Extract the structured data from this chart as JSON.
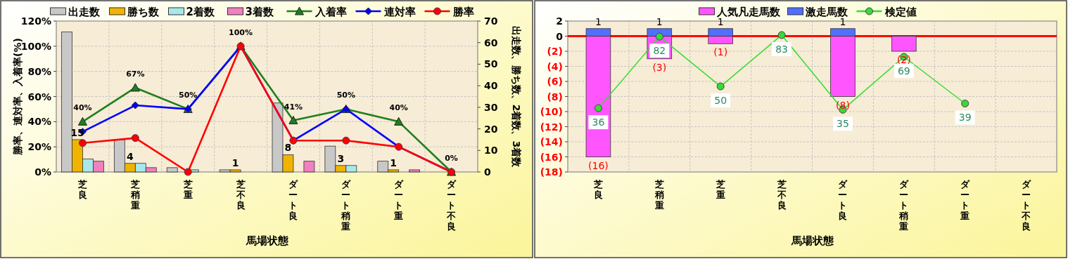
{
  "chart_data": [
    {
      "type": "bar",
      "legend": "top",
      "grid": true,
      "xlabel": "馬場状態",
      "ylabel": "勝率、連対率、入着率(%)",
      "y2label": "出走数、勝ち数、2着数、3着数",
      "categories": [
        "芝良",
        "芝稍重",
        "芝重",
        "芝不良",
        "ダート良",
        "ダート稍重",
        "ダート重",
        "ダート不良"
      ],
      "ylim": [
        0,
        120
      ],
      "yticks": [
        {
          "value": 0,
          "label": "0%"
        },
        {
          "value": 20,
          "label": "20%"
        },
        {
          "value": 40,
          "label": "40%"
        },
        {
          "value": 60,
          "label": "60%"
        },
        {
          "value": 80,
          "label": "80%"
        },
        {
          "value": 100,
          "label": "100%"
        },
        {
          "value": 120,
          "label": "120%"
        }
      ],
      "y2lim": [
        0,
        70
      ],
      "y2ticks": [
        0,
        10,
        20,
        30,
        40,
        50,
        60,
        70
      ],
      "series": [
        {
          "name": "出走数",
          "axis": "y2",
          "color": "#c8c8c8",
          "values": [
            65,
            15,
            2,
            1,
            32,
            12,
            5,
            0
          ]
        },
        {
          "name": "勝ち数",
          "axis": "y2",
          "color": "#f0b400",
          "values": [
            15,
            4,
            0,
            1,
            8,
            3,
            1,
            0
          ],
          "value_labels": [
            "15",
            "4",
            null,
            "1",
            "8",
            "3",
            "1",
            null
          ]
        },
        {
          "name": "2着数",
          "axis": "y2",
          "color": "#a8e8e8",
          "values": [
            6,
            4,
            1,
            0,
            0,
            3,
            0,
            0
          ]
        },
        {
          "name": "3着数",
          "axis": "y2",
          "color": "#f080c0",
          "values": [
            5,
            2,
            0,
            0,
            5,
            0,
            1,
            0
          ]
        },
        {
          "name": "入着率",
          "type": "line",
          "axis": "y",
          "color": "#1f7f1f",
          "marker": "triangle",
          "values": [
            40,
            67,
            50,
            100,
            41,
            50,
            40,
            0
          ],
          "value_labels": [
            "40%",
            "67%",
            "50%",
            "100%",
            "41%",
            "50%",
            "40%",
            "0%"
          ]
        },
        {
          "name": "連対率",
          "type": "line",
          "axis": "y",
          "color": "#0000ff",
          "marker": "diamond",
          "values": [
            32,
            53,
            50,
            100,
            25,
            50,
            20,
            0
          ]
        },
        {
          "name": "勝率",
          "type": "line",
          "axis": "y",
          "color": "#ff0000",
          "marker": "circle",
          "values": [
            23,
            27,
            0,
            100,
            25,
            25,
            20,
            0
          ]
        }
      ]
    },
    {
      "type": "bar",
      "stacked": true,
      "legend": "top",
      "grid": true,
      "xlabel": "馬場状態",
      "categories": [
        "芝良",
        "芝稍重",
        "芝重",
        "芝不良",
        "ダート良",
        "ダート稍重",
        "ダート重",
        "ダート不良"
      ],
      "ylim": [
        -18,
        2
      ],
      "yticks": [
        2,
        0,
        {
          "value": -2,
          "label": "(2)"
        },
        {
          "value": -4,
          "label": "(4)"
        },
        {
          "value": -6,
          "label": "(6)"
        },
        {
          "value": -8,
          "label": "(8)"
        },
        {
          "value": -10,
          "label": "(10)"
        },
        {
          "value": -12,
          "label": "(12)"
        },
        {
          "value": -14,
          "label": "(14)"
        },
        {
          "value": -16,
          "label": "(16)"
        },
        {
          "value": -18,
          "label": "(18)"
        }
      ],
      "y2lim": [
        -5,
        92
      ],
      "ref_lines": [
        {
          "axis": "y",
          "value": 0,
          "color": "#ff0000"
        }
      ],
      "series": [
        {
          "name": "人気凡走馬数",
          "axis": "y",
          "color": "#ff55ff",
          "values": [
            -16,
            -3,
            -1,
            0,
            -8,
            -2,
            0,
            0
          ],
          "value_labels": [
            "(16)",
            "(3)",
            "(1)",
            null,
            "(8)",
            "(2)",
            null,
            null
          ]
        },
        {
          "name": "激走馬数",
          "axis": "y",
          "color": "#5070ff",
          "values": [
            1,
            1,
            1,
            0,
            1,
            0,
            0,
            0
          ],
          "value_labels": [
            "1",
            "1",
            "1",
            null,
            "1",
            null,
            null,
            null
          ]
        },
        {
          "name": "検定値",
          "type": "line",
          "axis": "y2",
          "color": "#33dd33",
          "marker": "circle",
          "values": [
            36,
            82,
            50,
            83,
            35,
            69,
            39,
            null
          ],
          "value_labels": [
            "36",
            "82",
            "50",
            "83",
            "35",
            "69",
            "39",
            null
          ]
        }
      ]
    }
  ]
}
